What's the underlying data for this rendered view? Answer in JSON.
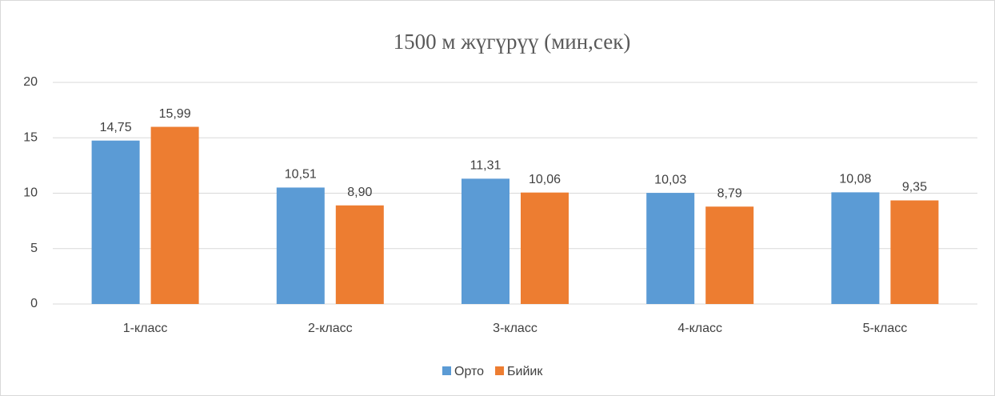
{
  "chart_data": {
    "type": "bar",
    "title": "1500 м жүгүрүү (мин,сек)",
    "categories": [
      "1-класс",
      "2-класс",
      "3-класс",
      "4-класс",
      "5-класс"
    ],
    "series": [
      {
        "name": "Орто",
        "color": "#5b9bd5",
        "values": [
          14.75,
          10.51,
          11.31,
          10.03,
          10.08
        ],
        "value_labels": [
          "14,75",
          "10,51",
          "11,31",
          "10,03",
          "10,08"
        ]
      },
      {
        "name": "Бийик",
        "color": "#ed7d31",
        "values": [
          15.99,
          8.9,
          10.06,
          8.79,
          9.35
        ],
        "value_labels": [
          "15,99",
          "8,90",
          "10,06",
          "8,79",
          "9,35"
        ]
      }
    ],
    "ylim": [
      0,
      20
    ],
    "yticks": [
      0,
      5,
      10,
      15,
      20
    ],
    "grid": true,
    "legend": "bottom"
  }
}
